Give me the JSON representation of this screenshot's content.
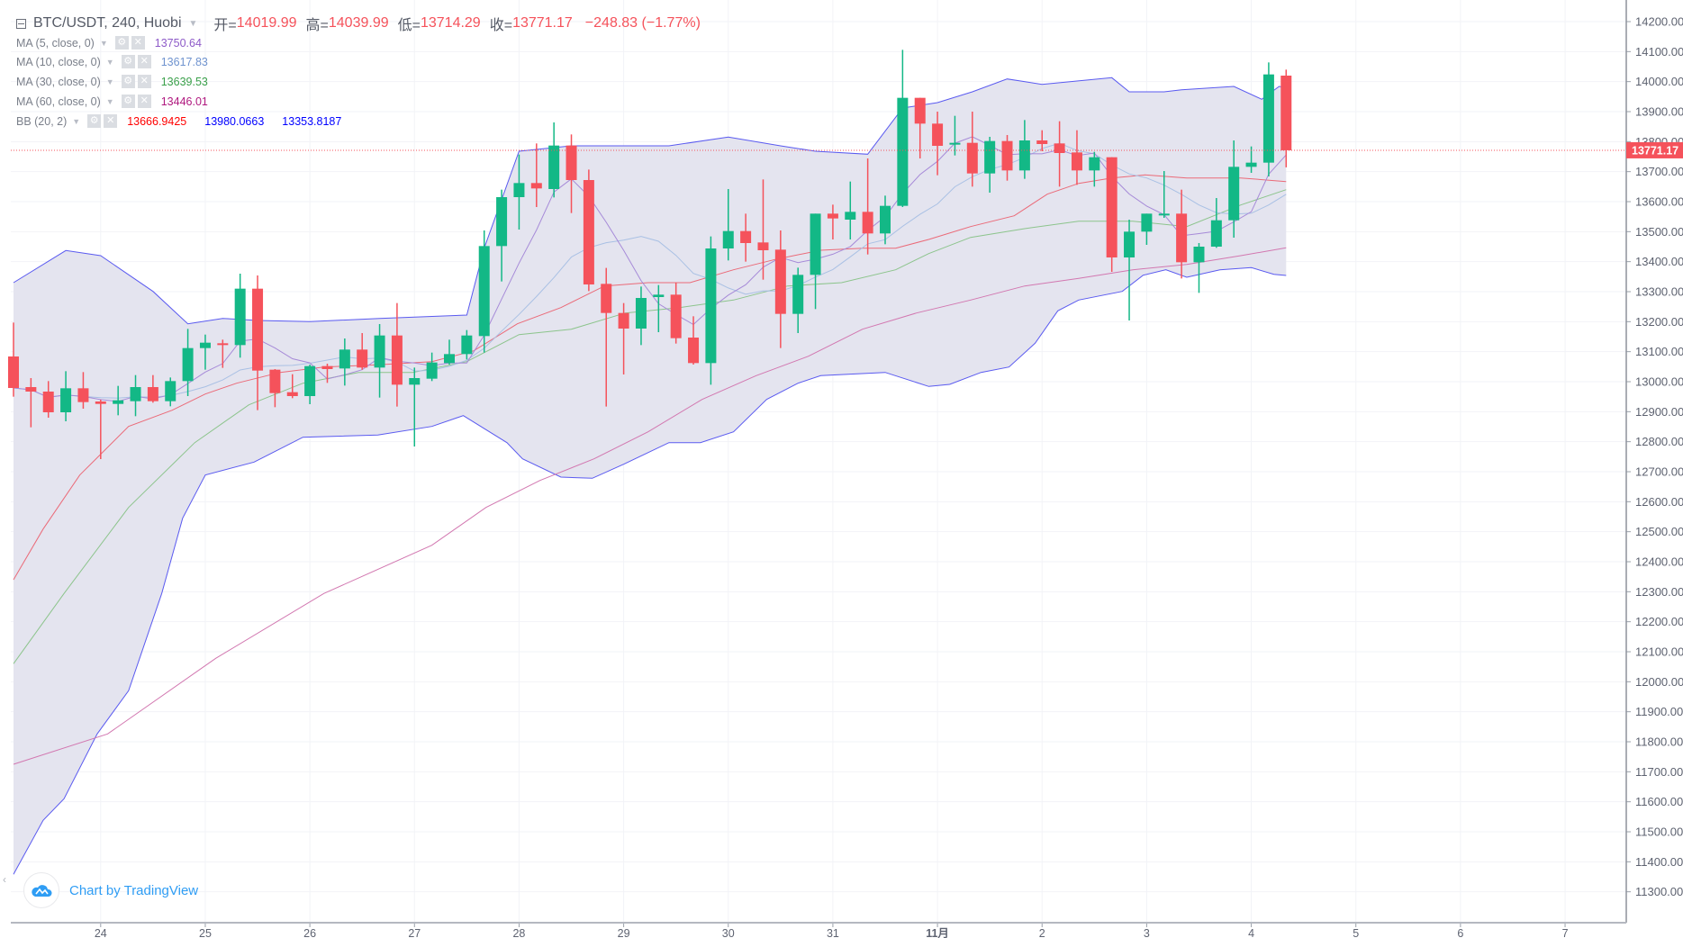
{
  "header": {
    "symbol": "BTC/USDT, 240, Huobi",
    "open_label": "开=",
    "open": "14019.99",
    "high_label": "高=",
    "high": "14039.99",
    "low_label": "低=",
    "low": "13714.29",
    "close_label": "收=",
    "close": "13771.17",
    "change": "−248.83 (−1.77%)"
  },
  "legend": [
    {
      "label": "MA (5, close, 0)",
      "values": [
        "13750.64"
      ],
      "colors": [
        "#8e5bc8"
      ]
    },
    {
      "label": "MA (10, close, 0)",
      "values": [
        "13617.83"
      ],
      "colors": [
        "#6f93cf"
      ]
    },
    {
      "label": "MA (30, close, 0)",
      "values": [
        "13639.53"
      ],
      "colors": [
        "#3aa04a"
      ]
    },
    {
      "label": "MA (60, close, 0)",
      "values": [
        "13446.01"
      ],
      "colors": [
        "#b0197f"
      ]
    },
    {
      "label": "BB (20, 2)",
      "values": [
        "13666.9425",
        "13980.0663",
        "13353.8187"
      ],
      "colors": [
        "#ff0000",
        "#0000ff",
        "#0000ff"
      ]
    }
  ],
  "legend_icons": {
    "settings": "gear-icon",
    "remove": "close-icon"
  },
  "branding": {
    "text": "Chart by TradingView",
    "icon": "tradingview-cloud-icon"
  },
  "last_price_label": "13771.17",
  "colors": {
    "up": "#13b886",
    "down": "#f5525b",
    "bb_fill": "#e4e4ef",
    "bb_band": "#5a5af0",
    "bb_mid": "#ec4b5a",
    "ma5": "#a68ad8",
    "ma10": "#a9c0e4",
    "ma30": "#8cc48c",
    "ma60": "#d277b0",
    "grid": "#f2f3f7",
    "axis_text": "#5d6270"
  },
  "chart_data": {
    "type": "candlestick",
    "title": "BTC/USDT, 240, Huobi",
    "interval": "240",
    "ylim": [
      11250,
      14230
    ],
    "y_ticks": [
      "14200.00",
      "14100.00",
      "14000.00",
      "13900.00",
      "13800.00",
      "13700.00",
      "13600.00",
      "13500.00",
      "13400.00",
      "13300.00",
      "13200.00",
      "13100.00",
      "13000.00",
      "12900.00",
      "12800.00",
      "12700.00",
      "12600.00",
      "12500.00",
      "12400.00",
      "12300.00",
      "12200.00",
      "12100.00",
      "12000.00",
      "11900.00",
      "11800.00",
      "11700.00",
      "11600.00",
      "11500.00",
      "11400.00",
      "11300.00"
    ],
    "x_ticks": [
      {
        "label": "24",
        "candle": 5
      },
      {
        "label": "25",
        "candle": 11
      },
      {
        "label": "26",
        "candle": 17
      },
      {
        "label": "27",
        "candle": 23
      },
      {
        "label": "28",
        "candle": 29
      },
      {
        "label": "29",
        "candle": 35
      },
      {
        "label": "30",
        "candle": 41
      },
      {
        "label": "31",
        "candle": 47
      },
      {
        "label": "11月",
        "candle": 53
      },
      {
        "label": "2",
        "candle": 59
      },
      {
        "label": "3",
        "candle": 65
      },
      {
        "label": "4",
        "candle": 71
      },
      {
        "label": "5",
        "candle": 77
      },
      {
        "label": "6",
        "candle": 83
      },
      {
        "label": "7",
        "candle": 89
      }
    ],
    "candle_fields": [
      "open",
      "high",
      "low",
      "close"
    ],
    "candles": [
      [
        13084,
        13197,
        12950,
        12979
      ],
      [
        12982,
        13012,
        12848,
        12967
      ],
      [
        12967,
        13002,
        12880,
        12898
      ],
      [
        12898,
        13035,
        12868,
        12978
      ],
      [
        12978,
        13032,
        12910,
        12932
      ],
      [
        12934,
        12940,
        12742,
        12926
      ],
      [
        12926,
        12986,
        12888,
        12938
      ],
      [
        12935,
        13022,
        12885,
        12982
      ],
      [
        12982,
        13022,
        12930,
        12935
      ],
      [
        12935,
        13014,
        12918,
        13002
      ],
      [
        13002,
        13176,
        12952,
        13112
      ],
      [
        13112,
        13157,
        13040,
        13130
      ],
      [
        13128,
        13140,
        13046,
        13122
      ],
      [
        13122,
        13360,
        13080,
        13310
      ],
      [
        13310,
        13354,
        12905,
        13037
      ],
      [
        13040,
        13042,
        12915,
        12962
      ],
      [
        12965,
        13025,
        12945,
        12952
      ],
      [
        12952,
        13057,
        12925,
        13052
      ],
      [
        13052,
        13060,
        12996,
        13042
      ],
      [
        13044,
        13144,
        12987,
        13107
      ],
      [
        13107,
        13162,
        13040,
        13047
      ],
      [
        13047,
        13192,
        12947,
        13154
      ],
      [
        13154,
        13262,
        12917,
        12990
      ],
      [
        12990,
        13047,
        12784,
        13012
      ],
      [
        13010,
        13097,
        13002,
        13064
      ],
      [
        13062,
        13140,
        13057,
        13092
      ],
      [
        13092,
        13172,
        13074,
        13154
      ],
      [
        13152,
        13504,
        13097,
        13452
      ],
      [
        13452,
        13640,
        13334,
        13615
      ],
      [
        13615,
        13757,
        13507,
        13662
      ],
      [
        13662,
        13794,
        13582,
        13644
      ],
      [
        13642,
        13864,
        13614,
        13787
      ],
      [
        13787,
        13824,
        13562,
        13672
      ],
      [
        13672,
        13707,
        13302,
        13324
      ],
      [
        13326,
        13379,
        12917,
        13229
      ],
      [
        13229,
        13262,
        13024,
        13177
      ],
      [
        13177,
        13317,
        13122,
        13279
      ],
      [
        13282,
        13322,
        13165,
        13290
      ],
      [
        13290,
        13330,
        13127,
        13145
      ],
      [
        13147,
        13218,
        13057,
        13062
      ],
      [
        13062,
        13484,
        12990,
        13444
      ],
      [
        13444,
        13642,
        13404,
        13502
      ],
      [
        13502,
        13560,
        13400,
        13462
      ],
      [
        13464,
        13674,
        13340,
        13438
      ],
      [
        13440,
        13504,
        13112,
        13226
      ],
      [
        13226,
        13380,
        13162,
        13356
      ],
      [
        13356,
        13560,
        13242,
        13560
      ],
      [
        13560,
        13590,
        13474,
        13544
      ],
      [
        13540,
        13667,
        13474,
        13566
      ],
      [
        13566,
        13744,
        13424,
        13494
      ],
      [
        13494,
        13620,
        13458,
        13586
      ],
      [
        13586,
        14106,
        13582,
        13946
      ],
      [
        13946,
        13946,
        13744,
        13860
      ],
      [
        13860,
        13900,
        13688,
        13786
      ],
      [
        13790,
        13886,
        13754,
        13796
      ],
      [
        13796,
        13900,
        13650,
        13694
      ],
      [
        13694,
        13816,
        13630,
        13802
      ],
      [
        13802,
        13822,
        13670,
        13704
      ],
      [
        13704,
        13872,
        13676,
        13804
      ],
      [
        13804,
        13838,
        13768,
        13792
      ],
      [
        13794,
        13868,
        13650,
        13762
      ],
      [
        13764,
        13838,
        13656,
        13704
      ],
      [
        13704,
        13766,
        13650,
        13748
      ],
      [
        13748,
        13748,
        13366,
        13414
      ],
      [
        13414,
        13540,
        13204,
        13500
      ],
      [
        13500,
        13560,
        13456,
        13560
      ],
      [
        13556,
        13702,
        13546,
        13560
      ],
      [
        13560,
        13640,
        13344,
        13398
      ],
      [
        13398,
        13462,
        13296,
        13450
      ],
      [
        13450,
        13612,
        13446,
        13538
      ],
      [
        13538,
        13804,
        13480,
        13716
      ],
      [
        13716,
        13784,
        13696,
        13730
      ],
      [
        13730,
        14064,
        13684,
        14024
      ],
      [
        14019.99,
        14039.99,
        13714.29,
        13771.17
      ]
    ],
    "last_price": 13771.17,
    "overlays": {
      "bb_upper": [
        [
          0,
          13330
        ],
        [
          3,
          13437
        ],
        [
          5,
          13420
        ],
        [
          8,
          13301
        ],
        [
          10,
          13193
        ],
        [
          12,
          13211
        ],
        [
          14,
          13204
        ],
        [
          17,
          13200
        ],
        [
          21,
          13211
        ],
        [
          26,
          13222
        ],
        [
          27,
          13445
        ],
        [
          29,
          13768
        ],
        [
          32,
          13786
        ],
        [
          35,
          13786
        ],
        [
          37.6,
          13786
        ],
        [
          41,
          13815
        ],
        [
          44,
          13786
        ],
        [
          46,
          13768
        ],
        [
          49,
          13758
        ],
        [
          51,
          13912
        ],
        [
          53,
          13930
        ],
        [
          55,
          13966
        ],
        [
          57,
          14009
        ],
        [
          59,
          13991
        ],
        [
          61,
          14002
        ],
        [
          63,
          14013
        ],
        [
          64,
          13966
        ],
        [
          66,
          13966
        ],
        [
          67,
          13973
        ],
        [
          70,
          13984
        ],
        [
          71.6,
          13941
        ],
        [
          72.6,
          13984
        ],
        [
          73,
          13980
        ]
      ],
      "bb_lower": [
        [
          0,
          11358
        ],
        [
          1.7,
          11538
        ],
        [
          2.9,
          11610
        ],
        [
          4.8,
          11826
        ],
        [
          6.6,
          11970
        ],
        [
          8.5,
          12294
        ],
        [
          9.7,
          12545
        ],
        [
          11,
          12689
        ],
        [
          13.8,
          12732
        ],
        [
          16.6,
          12815
        ],
        [
          20.9,
          12822
        ],
        [
          24,
          12851
        ],
        [
          25.8,
          12887
        ],
        [
          28.3,
          12797
        ],
        [
          29.2,
          12743
        ],
        [
          31.4,
          12682
        ],
        [
          33.2,
          12678
        ],
        [
          35,
          12725
        ],
        [
          37.6,
          12797
        ],
        [
          39.4,
          12797
        ],
        [
          41.3,
          12833
        ],
        [
          43.2,
          12941
        ],
        [
          45,
          12995
        ],
        [
          46.3,
          13020
        ],
        [
          50,
          13031
        ],
        [
          52.5,
          12984
        ],
        [
          53.7,
          12991
        ],
        [
          55.5,
          13031
        ],
        [
          57.1,
          13049
        ],
        [
          58.6,
          13128
        ],
        [
          59.9,
          13236
        ],
        [
          61.1,
          13272
        ],
        [
          63.6,
          13301
        ],
        [
          64.8,
          13355
        ],
        [
          66.1,
          13373
        ],
        [
          67.3,
          13348
        ],
        [
          69.2,
          13373
        ],
        [
          71,
          13380
        ],
        [
          72.3,
          13358
        ],
        [
          73,
          13354
        ]
      ],
      "bb_mid": [
        [
          0,
          12340
        ],
        [
          1.7,
          12509
        ],
        [
          3.8,
          12689
        ],
        [
          6.6,
          12851
        ],
        [
          9.1,
          12905
        ],
        [
          11,
          12959
        ],
        [
          12.8,
          12995
        ],
        [
          15.3,
          13031
        ],
        [
          17.8,
          13049
        ],
        [
          20.9,
          13056
        ],
        [
          24,
          13067
        ],
        [
          26.4,
          13103
        ],
        [
          28.9,
          13193
        ],
        [
          31.4,
          13247
        ],
        [
          33.9,
          13319
        ],
        [
          36.4,
          13330
        ],
        [
          38.8,
          13330
        ],
        [
          41.3,
          13373
        ],
        [
          43.8,
          13409
        ],
        [
          46.3,
          13438
        ],
        [
          48.7,
          13445
        ],
        [
          50.6,
          13445
        ],
        [
          52.5,
          13474
        ],
        [
          54.9,
          13517
        ],
        [
          57.4,
          13553
        ],
        [
          59.3,
          13625
        ],
        [
          61.1,
          13661
        ],
        [
          63,
          13679
        ],
        [
          64.9,
          13689
        ],
        [
          67.3,
          13679
        ],
        [
          70.4,
          13679
        ],
        [
          73,
          13667
        ]
      ],
      "ma30": [
        [
          0,
          12060
        ],
        [
          2.9,
          12294
        ],
        [
          6.6,
          12581
        ],
        [
          10.4,
          12797
        ],
        [
          13.5,
          12923
        ],
        [
          16.6,
          12995
        ],
        [
          19.8,
          13031
        ],
        [
          22.9,
          13031
        ],
        [
          26,
          13067
        ],
        [
          29,
          13157
        ],
        [
          32,
          13175
        ],
        [
          35.1,
          13229
        ],
        [
          38.2,
          13247
        ],
        [
          41.3,
          13272
        ],
        [
          44.4,
          13319
        ],
        [
          47.5,
          13330
        ],
        [
          50.6,
          13373
        ],
        [
          52.5,
          13427
        ],
        [
          54.9,
          13481
        ],
        [
          58,
          13510
        ],
        [
          61.1,
          13535
        ],
        [
          64.2,
          13535
        ],
        [
          67.3,
          13517
        ],
        [
          70.4,
          13589
        ],
        [
          73,
          13640
        ]
      ],
      "ma60": [
        [
          0,
          11725
        ],
        [
          5.4,
          11826
        ],
        [
          11.6,
          12078
        ],
        [
          17.8,
          12294
        ],
        [
          24,
          12455
        ],
        [
          27.1,
          12581
        ],
        [
          30.2,
          12671
        ],
        [
          33.3,
          12743
        ],
        [
          36.4,
          12833
        ],
        [
          39.5,
          12941
        ],
        [
          42.6,
          13020
        ],
        [
          45.6,
          13085
        ],
        [
          48.7,
          13175
        ],
        [
          51.8,
          13229
        ],
        [
          54.9,
          13272
        ],
        [
          58,
          13319
        ],
        [
          61.1,
          13344
        ],
        [
          64.2,
          13373
        ],
        [
          67.3,
          13391
        ],
        [
          70.4,
          13420
        ],
        [
          73,
          13446
        ]
      ],
      "ma5_period": 5,
      "ma10_period": 10
    }
  }
}
